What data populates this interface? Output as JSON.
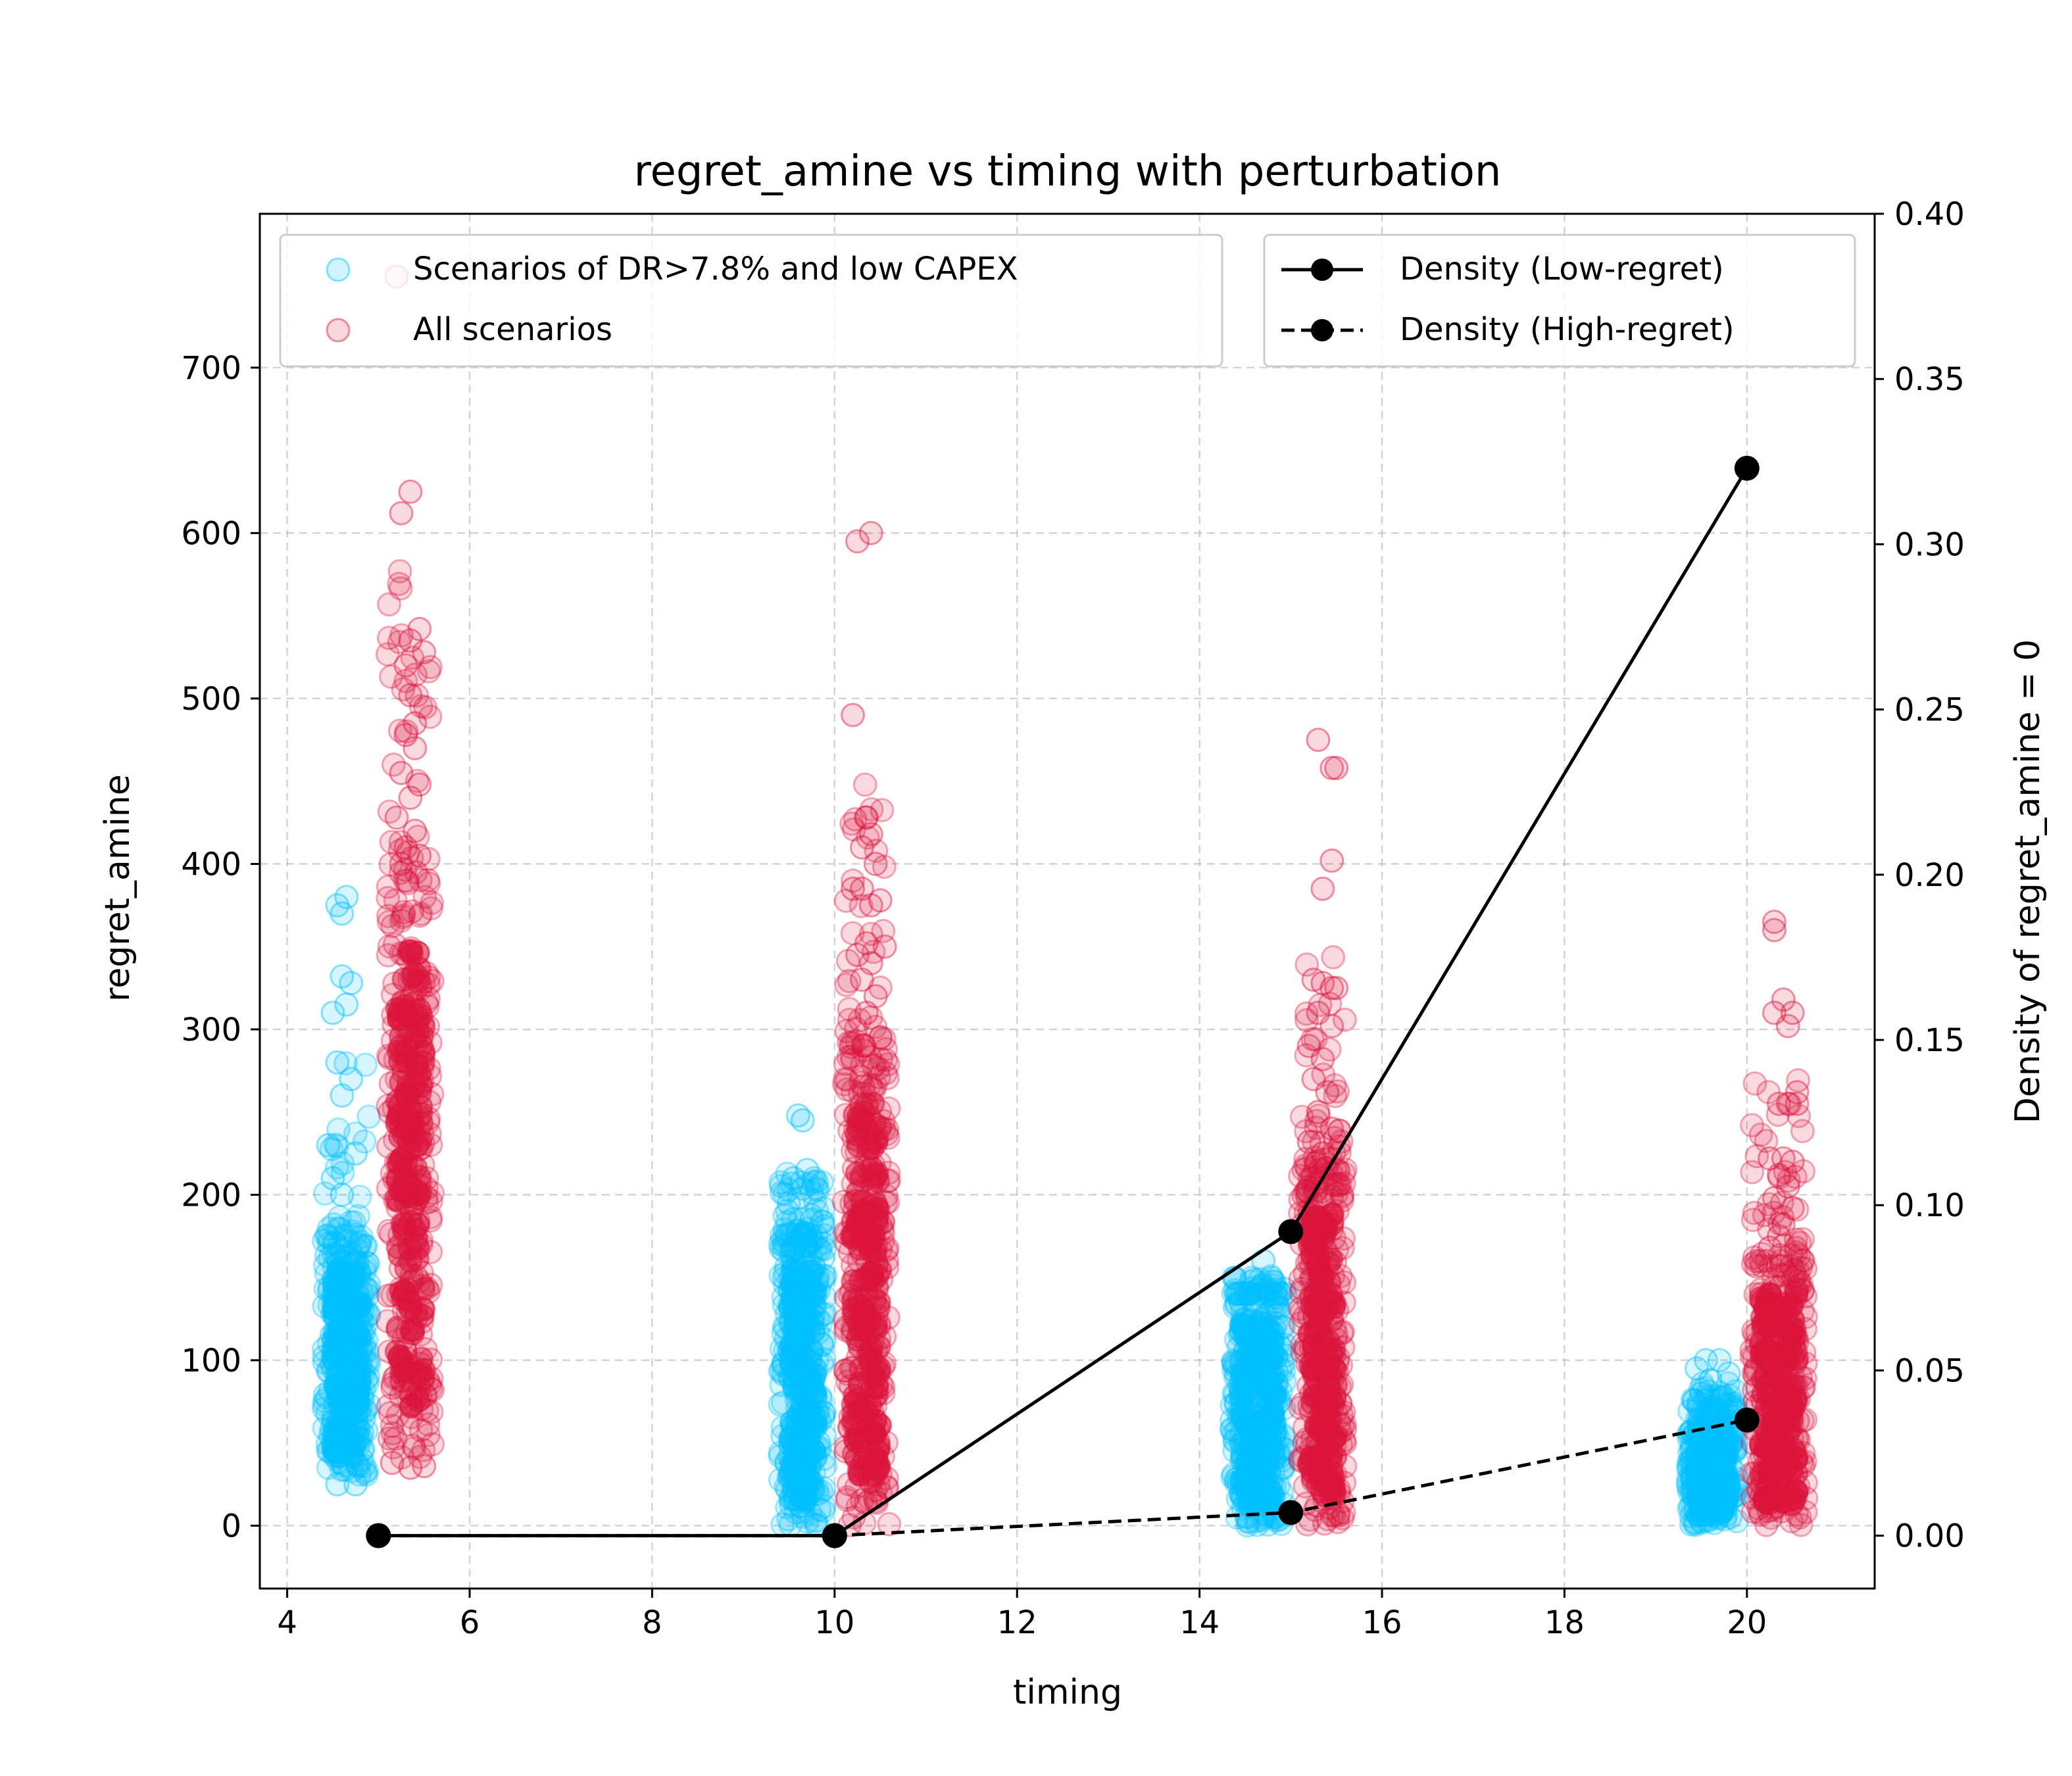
{
  "chart_data": {
    "type": "scatter",
    "title": "regret_amine vs timing with perturbation",
    "xlabel": "timing",
    "ylabel": "regret_amine",
    "y2label": "Density of regret_amine = 0",
    "xlim": [
      3.7,
      21.4
    ],
    "ylim": [
      -38,
      793
    ],
    "y2lim": [
      -0.016,
      0.4
    ],
    "xticks": [
      4,
      6,
      8,
      10,
      12,
      14,
      16,
      18,
      20
    ],
    "yticks": [
      0,
      100,
      200,
      300,
      400,
      500,
      600,
      700
    ],
    "y2ticks": [
      "0.00",
      "0.05",
      "0.10",
      "0.15",
      "0.20",
      "0.25",
      "0.30",
      "0.35",
      "0.40"
    ],
    "grid": true,
    "legend_left": {
      "position": "top-left",
      "entries": [
        {
          "label": "Scenarios of DR>7.8% and low CAPEX",
          "color": "#00bfff"
        },
        {
          "label": "All scenarios",
          "color": "#dc143c"
        }
      ]
    },
    "legend_right": {
      "position": "top-right",
      "entries": [
        {
          "label": "Density (Low-regret)",
          "style": "solid"
        },
        {
          "label": "Density (High-regret)",
          "style": "dashed"
        }
      ]
    },
    "scatter_groups": [
      {
        "series": "Scenarios of DR>7.8% and low CAPEX",
        "color": "#00bfff",
        "x_range": [
          4.4,
          4.9
        ],
        "dense_range": [
          30,
          175
        ],
        "max": 380,
        "outliers": [
          [
            4.55,
            375
          ],
          [
            4.65,
            380
          ],
          [
            4.6,
            370
          ],
          [
            4.6,
            332
          ],
          [
            4.7,
            328
          ],
          [
            4.5,
            310
          ],
          [
            4.65,
            315
          ],
          [
            4.55,
            280
          ],
          [
            4.7,
            270
          ],
          [
            4.6,
            260
          ],
          [
            4.45,
            230
          ],
          [
            4.75,
            225
          ],
          [
            4.5,
            210
          ],
          [
            4.6,
            200
          ],
          [
            4.55,
            25
          ],
          [
            4.75,
            25
          ]
        ]
      },
      {
        "series": "All scenarios",
        "color": "#dc143c",
        "x_range": [
          5.1,
          5.6
        ],
        "dense_range": [
          40,
          390
        ],
        "max": 755,
        "outliers": [
          [
            5.2,
            755
          ],
          [
            5.35,
            625
          ],
          [
            5.25,
            612
          ],
          [
            5.45,
            542
          ],
          [
            5.35,
            535
          ],
          [
            5.5,
            528
          ],
          [
            5.3,
            520
          ],
          [
            5.35,
            502
          ],
          [
            5.4,
            485
          ],
          [
            5.3,
            478
          ],
          [
            5.4,
            470
          ],
          [
            5.25,
            455
          ],
          [
            5.45,
            448
          ],
          [
            5.35,
            440
          ],
          [
            5.2,
            428
          ],
          [
            5.4,
            420
          ],
          [
            5.3,
            410
          ],
          [
            5.45,
            405
          ],
          [
            5.25,
            400
          ],
          [
            5.35,
            35
          ],
          [
            5.15,
            38
          ],
          [
            5.5,
            36
          ]
        ]
      },
      {
        "series": "Scenarios of DR>7.8% and low CAPEX",
        "color": "#00bfff",
        "x_range": [
          9.4,
          9.9
        ],
        "dense_range": [
          0,
          175
        ],
        "max": 248,
        "outliers": [
          [
            9.6,
            248
          ],
          [
            9.65,
            245
          ],
          [
            9.7,
            215
          ],
          [
            9.55,
            210
          ],
          [
            9.8,
            208
          ],
          [
            9.5,
            195
          ],
          [
            9.75,
            185
          ],
          [
            9.6,
            178
          ]
        ]
      },
      {
        "series": "All scenarios",
        "color": "#dc143c",
        "x_range": [
          10.1,
          10.6
        ],
        "dense_range": [
          0,
          290
        ],
        "max": 600,
        "outliers": [
          [
            10.25,
            595
          ],
          [
            10.4,
            600
          ],
          [
            10.2,
            490
          ],
          [
            10.35,
            428
          ],
          [
            10.4,
            418
          ],
          [
            10.3,
            410
          ],
          [
            10.45,
            400
          ],
          [
            10.3,
            385
          ],
          [
            10.2,
            385
          ],
          [
            10.5,
            378
          ],
          [
            10.4,
            375
          ],
          [
            10.35,
            352
          ],
          [
            10.55,
            350
          ],
          [
            10.25,
            345
          ],
          [
            10.4,
            340
          ],
          [
            10.3,
            330
          ],
          [
            10.45,
            320
          ],
          [
            10.35,
            310
          ]
        ]
      },
      {
        "series": "Scenarios of DR>7.8% and low CAPEX",
        "color": "#00bfff",
        "x_range": [
          14.35,
          14.95
        ],
        "dense_range": [
          0,
          140
        ],
        "max": 160,
        "outliers": [
          [
            14.7,
            160
          ],
          [
            14.55,
            140
          ],
          [
            14.85,
            138
          ],
          [
            14.45,
            135
          ]
        ]
      },
      {
        "series": "All scenarios",
        "color": "#dc143c",
        "x_range": [
          15.1,
          15.6
        ],
        "dense_range": [
          0,
          215
        ],
        "max": 475,
        "outliers": [
          [
            15.3,
            475
          ],
          [
            15.5,
            458
          ],
          [
            15.45,
            458
          ],
          [
            15.45,
            402
          ],
          [
            15.35,
            385
          ],
          [
            15.25,
            330
          ],
          [
            15.35,
            328
          ],
          [
            15.45,
            325
          ],
          [
            15.5,
            325
          ],
          [
            15.3,
            310
          ],
          [
            15.45,
            302
          ],
          [
            15.2,
            290
          ],
          [
            15.35,
            282
          ],
          [
            15.25,
            270
          ],
          [
            15.4,
            262
          ],
          [
            15.3,
            250
          ],
          [
            15.45,
            240
          ],
          [
            15.2,
            232
          ],
          [
            15.35,
            225
          ]
        ]
      },
      {
        "series": "Scenarios of DR>7.8% and low CAPEX",
        "color": "#00bfff",
        "x_range": [
          19.35,
          19.9
        ],
        "dense_range": [
          0,
          70
        ],
        "max": 100,
        "outliers": [
          [
            19.55,
            100
          ],
          [
            19.7,
            100
          ],
          [
            19.45,
            95
          ],
          [
            19.8,
            92
          ],
          [
            19.6,
            88
          ],
          [
            19.5,
            80
          ],
          [
            19.75,
            78
          ]
        ]
      },
      {
        "series": "All scenarios",
        "color": "#dc143c",
        "x_range": [
          20.05,
          20.65
        ],
        "dense_range": [
          0,
          160
        ],
        "max": 365,
        "outliers": [
          [
            20.3,
            365
          ],
          [
            20.3,
            360
          ],
          [
            20.4,
            318
          ],
          [
            20.3,
            310
          ],
          [
            20.5,
            310
          ],
          [
            20.45,
            302
          ],
          [
            20.55,
            262
          ],
          [
            20.35,
            255
          ],
          [
            20.45,
            255
          ],
          [
            20.55,
            255
          ],
          [
            20.25,
            222
          ],
          [
            20.4,
            222
          ],
          [
            20.5,
            220
          ],
          [
            20.35,
            212
          ],
          [
            20.45,
            205
          ],
          [
            20.3,
            198
          ],
          [
            20.5,
            192
          ],
          [
            20.4,
            182
          ],
          [
            20.35,
            175
          ],
          [
            20.25,
            168
          ]
        ]
      }
    ],
    "line_series": [
      {
        "name": "Density (Low-regret)",
        "style": "solid",
        "x": [
          5,
          10,
          15,
          20
        ],
        "y": [
          0.0,
          0.0,
          0.092,
          0.323
        ]
      },
      {
        "name": "Density (High-regret)",
        "style": "dashed",
        "x": [
          5,
          10,
          15,
          20
        ],
        "y": [
          0.0,
          0.0,
          0.007,
          0.035
        ]
      }
    ]
  }
}
